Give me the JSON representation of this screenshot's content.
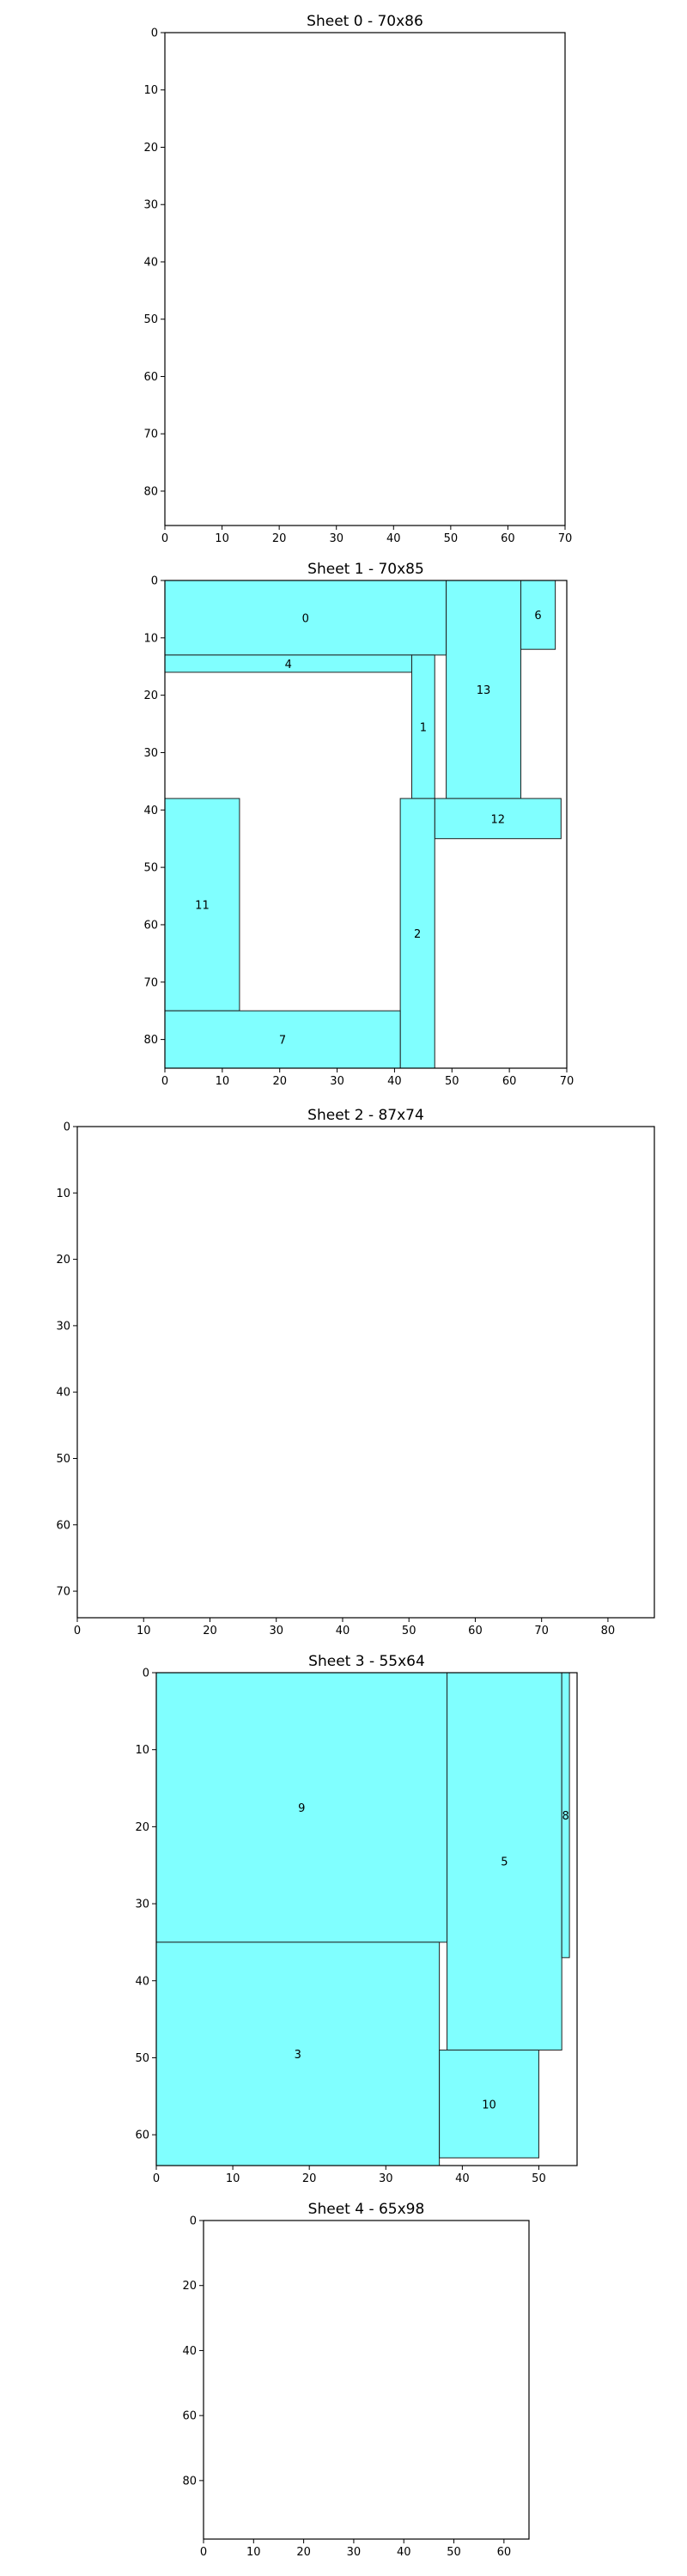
{
  "figure": {
    "piece_color": "#80ffff",
    "edge_color": "#000000"
  },
  "chart_data": [
    {
      "type": "rectangle-packing",
      "title": "Sheet 0 - 70x86",
      "sheet": {
        "width": 70,
        "height": 86
      },
      "xlim": [
        0,
        70
      ],
      "ylim": [
        0,
        86
      ],
      "xticks": [
        0,
        10,
        20,
        30,
        40,
        50,
        60,
        70
      ],
      "yticks": [
        0,
        10,
        20,
        30,
        40,
        50,
        60,
        70,
        80
      ],
      "y_inverted": true,
      "rects": []
    },
    {
      "type": "rectangle-packing",
      "title": "Sheet 1 - 70x85",
      "sheet": {
        "width": 70,
        "height": 85
      },
      "xlim": [
        0,
        70
      ],
      "ylim": [
        0,
        85
      ],
      "xticks": [
        0,
        10,
        20,
        30,
        40,
        50,
        60,
        70
      ],
      "yticks": [
        0,
        10,
        20,
        30,
        40,
        50,
        60,
        70,
        80
      ],
      "y_inverted": true,
      "rects": [
        {
          "id": "0",
          "x": 0,
          "y": 0,
          "w": 49,
          "h": 13
        },
        {
          "id": "4",
          "x": 0,
          "y": 13,
          "w": 43,
          "h": 3
        },
        {
          "id": "1",
          "x": 43,
          "y": 13,
          "w": 4,
          "h": 25
        },
        {
          "id": "13",
          "x": 49,
          "y": 0,
          "w": 13,
          "h": 38
        },
        {
          "id": "6",
          "x": 62,
          "y": 0,
          "w": 6,
          "h": 12
        },
        {
          "id": "12",
          "x": 47,
          "y": 38,
          "w": 22,
          "h": 7
        },
        {
          "id": "2",
          "x": 41,
          "y": 38,
          "w": 6,
          "h": 47
        },
        {
          "id": "11",
          "x": 0,
          "y": 38,
          "w": 13,
          "h": 37
        },
        {
          "id": "7",
          "x": 0,
          "y": 75,
          "w": 41,
          "h": 10
        }
      ]
    },
    {
      "type": "rectangle-packing",
      "title": "Sheet 2 - 87x74",
      "sheet": {
        "width": 87,
        "height": 74
      },
      "xlim": [
        0,
        87
      ],
      "ylim": [
        0,
        74
      ],
      "xticks": [
        0,
        10,
        20,
        30,
        40,
        50,
        60,
        70,
        80
      ],
      "yticks": [
        0,
        10,
        20,
        30,
        40,
        50,
        60,
        70
      ],
      "y_inverted": true,
      "rects": []
    },
    {
      "type": "rectangle-packing",
      "title": "Sheet 3 - 55x64",
      "sheet": {
        "width": 55,
        "height": 64
      },
      "xlim": [
        0,
        55
      ],
      "ylim": [
        0,
        64
      ],
      "xticks": [
        0,
        10,
        20,
        30,
        40,
        50
      ],
      "yticks": [
        0,
        10,
        20,
        30,
        40,
        50,
        60
      ],
      "y_inverted": true,
      "rects": [
        {
          "id": "9",
          "x": 0,
          "y": 0,
          "w": 38,
          "h": 35
        },
        {
          "id": "5",
          "x": 38,
          "y": 0,
          "w": 15,
          "h": 49
        },
        {
          "id": "8",
          "x": 53,
          "y": 0,
          "w": 1,
          "h": 37
        },
        {
          "id": "3",
          "x": 0,
          "y": 35,
          "w": 37,
          "h": 29
        },
        {
          "id": "10",
          "x": 37,
          "y": 49,
          "w": 13,
          "h": 14
        }
      ]
    },
    {
      "type": "rectangle-packing",
      "title": "Sheet 4 - 65x98",
      "sheet": {
        "width": 65,
        "height": 98
      },
      "xlim": [
        0,
        65
      ],
      "ylim": [
        0,
        98
      ],
      "xticks": [
        0,
        10,
        20,
        30,
        40,
        50,
        60
      ],
      "yticks": [
        0,
        20,
        40,
        60,
        80
      ],
      "y_inverted": true,
      "rects": []
    }
  ]
}
